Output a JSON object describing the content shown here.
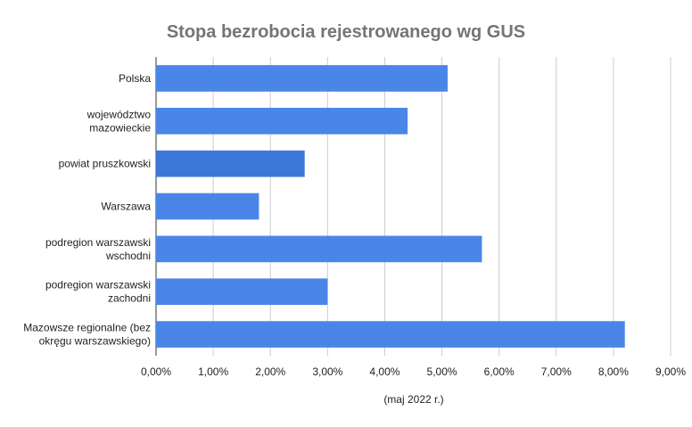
{
  "chart_data": {
    "type": "bar",
    "orientation": "horizontal",
    "title": "Stopa bezrobocia rejestrowanego wg GUS",
    "xlabel": "(maj 2022 r.)",
    "ylabel": "",
    "categories": [
      [
        "Polska"
      ],
      [
        "województwo",
        "mazowieckie"
      ],
      [
        "powiat pruszkowski"
      ],
      [
        "Warszawa"
      ],
      [
        "podregion warszawski",
        "wschodni"
      ],
      [
        "podregion warszawski",
        "zachodni"
      ],
      [
        "Mazowsze regionalne (bez",
        "okręgu warszawskiego)"
      ]
    ],
    "values": [
      5.1,
      4.4,
      2.6,
      1.8,
      5.7,
      3.0,
      8.2
    ],
    "xlim": [
      0,
      9
    ],
    "ticks": [
      "0,00%",
      "1,00%",
      "2,00%",
      "3,00%",
      "4,00%",
      "5,00%",
      "6,00%",
      "7,00%",
      "8,00%",
      "9,00%"
    ],
    "grid": true,
    "legend": "none",
    "colors": {
      "bar": "#4a86e8",
      "bar_highlight": "#3c78d8",
      "title": "#757575",
      "text": "#222222",
      "grid": "#cccccc"
    },
    "highlight_index": 2
  }
}
